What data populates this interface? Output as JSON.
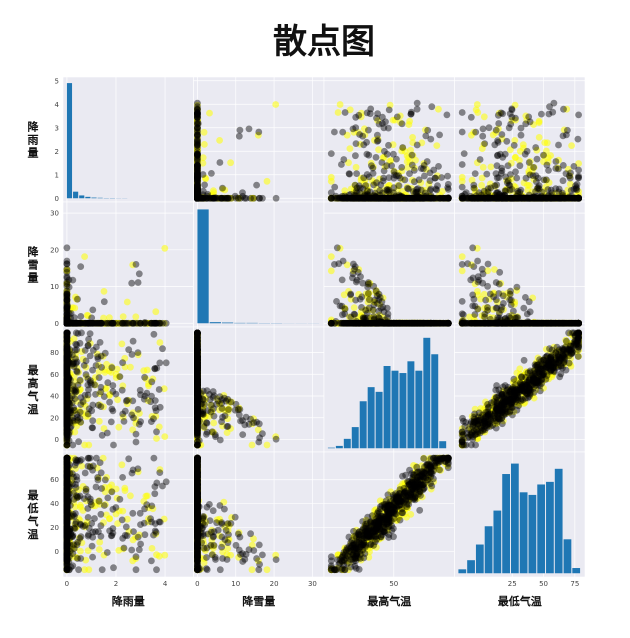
{
  "chart_data": {
    "type": "scatter_matrix",
    "title": "散点图",
    "variables": [
      {
        "name": "降雨量",
        "label": "降雨量",
        "range": [
          0,
          5
        ],
        "ticks": [
          0,
          2,
          4
        ],
        "yticks": [
          0,
          1,
          2,
          3,
          4,
          5
        ]
      },
      {
        "name": "降雪量",
        "label": "降雪量",
        "range": [
          0,
          32
        ],
        "ticks": [
          0,
          10,
          20,
          30
        ],
        "yticks": [
          0,
          10,
          20,
          30
        ]
      },
      {
        "name": "最高气温",
        "label": "最高气温",
        "range": [
          -8,
          100
        ],
        "ticks": [
          50
        ],
        "yticks": [
          0,
          20,
          40,
          60,
          80
        ]
      },
      {
        "name": "最低气温",
        "label": "最低气温",
        "range": [
          -18,
          80
        ],
        "ticks": [
          25,
          50,
          75
        ],
        "yticks": [
          0,
          20,
          40,
          60
        ]
      }
    ],
    "histograms": [
      {
        "variable": "降雨量",
        "bin_edges": [
          0,
          0.25,
          0.5,
          0.75,
          1.0,
          1.25,
          1.5,
          1.75,
          2.0,
          2.25,
          2.5
        ],
        "counts": [
          4.9,
          0.28,
          0.12,
          0.06,
          0.03,
          0.02,
          0.01,
          0.01,
          0.005,
          0.005
        ],
        "scale_max": 5
      },
      {
        "variable": "降雪量",
        "bin_edges": [
          0,
          3.2,
          6.4,
          9.6,
          12.8,
          16,
          19.2,
          22.4,
          25.6,
          28.8,
          32
        ],
        "counts": [
          31,
          0.3,
          0.2,
          0.1,
          0.1,
          0.05,
          0.05,
          0.02,
          0.02,
          0.02
        ],
        "scale_max": 32
      },
      {
        "variable": "最高气温",
        "bin_edges": [
          -8,
          -1,
          6,
          13,
          20,
          27,
          34,
          41,
          48,
          55,
          62,
          69,
          76,
          83,
          90,
          97
        ],
        "counts": [
          0.5,
          2,
          8,
          18,
          40,
          52,
          48,
          70,
          66,
          64,
          74,
          66,
          94,
          80,
          6
        ],
        "scale_max": 100
      },
      {
        "variable": "最低气温",
        "bin_edges": [
          -18,
          -11,
          -4,
          3,
          10,
          17,
          24,
          31,
          38,
          45,
          52,
          59,
          66,
          73,
          80
        ],
        "counts": [
          3,
          10,
          22,
          36,
          48,
          76,
          84,
          62,
          60,
          68,
          70,
          80,
          26,
          4
        ],
        "scale_max": 90
      }
    ],
    "point_colors": {
      "light": "#ffff00",
      "dark": "#000000"
    },
    "bar_color": "#1f77b4",
    "panel_background": "#eaeaf2",
    "grid_color": "#ffffff"
  }
}
